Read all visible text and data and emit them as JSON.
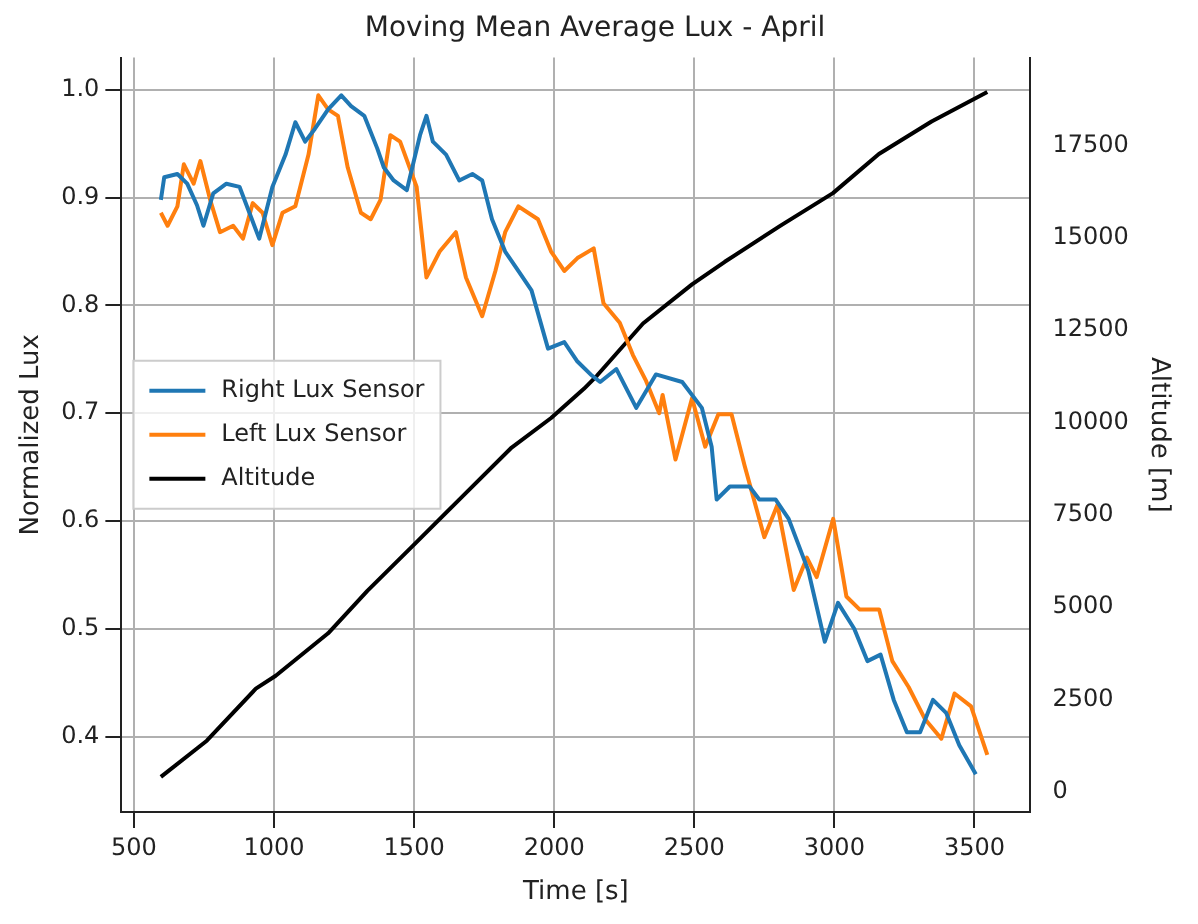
{
  "chart_data": {
    "type": "line",
    "title": "Moving Mean Average Lux - April",
    "xlabel": "Time [s]",
    "ylabel": "Normalized Lux",
    "y2label": "Altitude [m]",
    "xlim": [
      455,
      3700
    ],
    "xticks": [
      500,
      1000,
      1500,
      2000,
      2500,
      3000,
      3500
    ],
    "ylim": [
      0.33,
      1.03
    ],
    "yticks": [
      0.4,
      0.5,
      0.6,
      0.7,
      0.8,
      0.9,
      {
        "value": 1,
        "label": "1.0"
      }
    ],
    "y2lim": [
      -550,
      19880
    ],
    "y2ticks": [
      0,
      2500,
      5000,
      7500,
      10000,
      12500,
      15000,
      17500
    ],
    "grid": true,
    "legend": "left",
    "line_style": "solid",
    "marker": "none",
    "series": [
      {
        "name": "Right Lux Sensor",
        "color": "#1f77b4",
        "x": [
          596,
          608,
          655,
          690,
          725,
          748,
          783,
          830,
          877,
          912,
          947,
          994,
          1041,
          1076,
          1111,
          1146,
          1193,
          1240,
          1275,
          1322,
          1368,
          1392,
          1427,
          1474,
          1521,
          1544,
          1567,
          1614,
          1661,
          1708,
          1743,
          1778,
          1825,
          1872,
          1919,
          1978,
          2036,
          2083,
          2130,
          2164,
          2222,
          2293,
          2363,
          2457,
          2527,
          2562,
          2580,
          2627,
          2697,
          2732,
          2790,
          2837,
          2907,
          2966,
          3013,
          3071,
          3118,
          3165,
          3212,
          3259,
          3306,
          3352,
          3399,
          3446,
          3505
        ],
        "values": [
          0.898,
          0.919,
          0.922,
          0.913,
          0.893,
          0.874,
          0.904,
          0.913,
          0.91,
          0.886,
          0.862,
          0.91,
          0.94,
          0.97,
          0.952,
          0.964,
          0.982,
          0.995,
          0.985,
          0.976,
          0.946,
          0.928,
          0.916,
          0.907,
          0.958,
          0.976,
          0.952,
          0.94,
          0.916,
          0.922,
          0.916,
          0.88,
          0.85,
          0.832,
          0.814,
          0.76,
          0.766,
          0.748,
          0.736,
          0.729,
          0.741,
          0.705,
          0.736,
          0.729,
          0.705,
          0.669,
          0.62,
          0.632,
          0.632,
          0.62,
          0.62,
          0.602,
          0.554,
          0.488,
          0.524,
          0.5,
          0.47,
          0.476,
          0.434,
          0.404,
          0.404,
          0.434,
          0.422,
          0.392,
          0.365
        ]
      },
      {
        "name": "Left Lux Sensor",
        "color": "#ff7f0e",
        "x": [
          596,
          620,
          655,
          678,
          713,
          737,
          772,
          807,
          854,
          889,
          924,
          959,
          994,
          1030,
          1076,
          1123,
          1158,
          1193,
          1228,
          1263,
          1310,
          1345,
          1380,
          1415,
          1450,
          1509,
          1544,
          1591,
          1649,
          1685,
          1743,
          1790,
          1825,
          1872,
          1942,
          1989,
          2036,
          2083,
          2141,
          2176,
          2234,
          2281,
          2328,
          2375,
          2387,
          2433,
          2492,
          2539,
          2586,
          2633,
          2680,
          2750,
          2797,
          2855,
          2902,
          2937,
          2996,
          3043,
          3090,
          3160,
          3207,
          3265,
          3324,
          3382,
          3429,
          3488,
          3546
        ],
        "values": [
          0.886,
          0.874,
          0.892,
          0.931,
          0.913,
          0.934,
          0.898,
          0.868,
          0.874,
          0.862,
          0.895,
          0.886,
          0.856,
          0.886,
          0.892,
          0.94,
          0.995,
          0.982,
          0.976,
          0.928,
          0.886,
          0.88,
          0.898,
          0.958,
          0.952,
          0.91,
          0.826,
          0.85,
          0.868,
          0.826,
          0.79,
          0.832,
          0.868,
          0.892,
          0.88,
          0.85,
          0.832,
          0.844,
          0.853,
          0.802,
          0.784,
          0.754,
          0.73,
          0.7,
          0.717,
          0.657,
          0.714,
          0.669,
          0.699,
          0.699,
          0.651,
          0.585,
          0.615,
          0.536,
          0.566,
          0.548,
          0.602,
          0.53,
          0.518,
          0.518,
          0.47,
          0.446,
          0.416,
          0.398,
          0.44,
          0.428,
          0.383
        ]
      },
      {
        "name": "Altitude",
        "color": "#000000",
        "axis": "y2",
        "x": [
          596,
          760,
          935,
          1006,
          1193,
          1333,
          1497,
          1661,
          1848,
          1989,
          2106,
          2153,
          2317,
          2492,
          2609,
          2808,
          2995,
          3159,
          3347,
          3546
        ],
        "values": [
          400,
          1380,
          2790,
          3140,
          4290,
          5440,
          6670,
          7910,
          9320,
          10120,
          10910,
          11270,
          12680,
          13740,
          14350,
          15330,
          16210,
          17270,
          18150,
          18950
        ]
      }
    ]
  }
}
